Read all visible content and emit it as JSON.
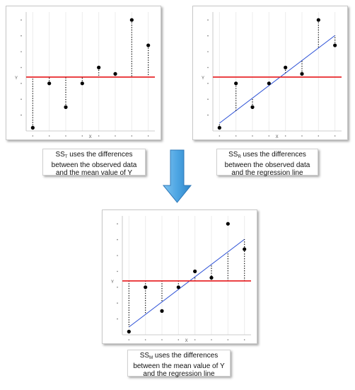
{
  "captions": {
    "sst": {
      "abbrev": "SS",
      "sub": "T",
      "text": " uses the differences between the observed data and the mean value of Y"
    },
    "ssr": {
      "abbrev": "SS",
      "sub": "R",
      "text": " uses the differences between the observed data and the regression line"
    },
    "ssm": {
      "abbrev": "SS",
      "sub": "M",
      "text": " uses the differences between the mean value of Y and the regression line"
    }
  },
  "axis": {
    "ylabel": "Y",
    "xlabel": "X"
  },
  "colors": {
    "mean_line": "#e8282b",
    "regression_line": "#2a4fd6",
    "points": "#000000",
    "arrow": "#5aaee6"
  },
  "chart_data": [
    {
      "type": "scatter",
      "id": "sst",
      "x": [
        1,
        2,
        3,
        4,
        5,
        6,
        7,
        8
      ],
      "y": [
        0.2,
        3,
        1.5,
        3,
        4,
        3.6,
        7,
        5.4
      ],
      "mean": 3.4,
      "regression": null,
      "residuals": "to-mean",
      "xlim": [
        0.6,
        8.4
      ],
      "ylim": [
        0,
        7.5
      ]
    },
    {
      "type": "scatter",
      "id": "ssr",
      "x": [
        1,
        2,
        3,
        4,
        5,
        6,
        7,
        8
      ],
      "y": [
        0.2,
        3,
        1.5,
        3,
        4,
        3.6,
        7,
        5.4
      ],
      "mean": 3.4,
      "regression": {
        "intercept": -0.3,
        "slope": 0.79
      },
      "residuals": "to-regression",
      "xlim": [
        0.6,
        8.4
      ],
      "ylim": [
        0,
        7.5
      ]
    },
    {
      "type": "scatter",
      "id": "ssm",
      "x": [
        1,
        2,
        3,
        4,
        5,
        6,
        7,
        8
      ],
      "y": [
        0.2,
        3,
        1.5,
        3,
        4,
        3.6,
        7,
        5.4
      ],
      "mean": 3.4,
      "regression": {
        "intercept": -0.3,
        "slope": 0.79
      },
      "residuals": "mean-to-regression",
      "xlim": [
        0.6,
        8.4
      ],
      "ylim": [
        0,
        7.5
      ]
    }
  ]
}
